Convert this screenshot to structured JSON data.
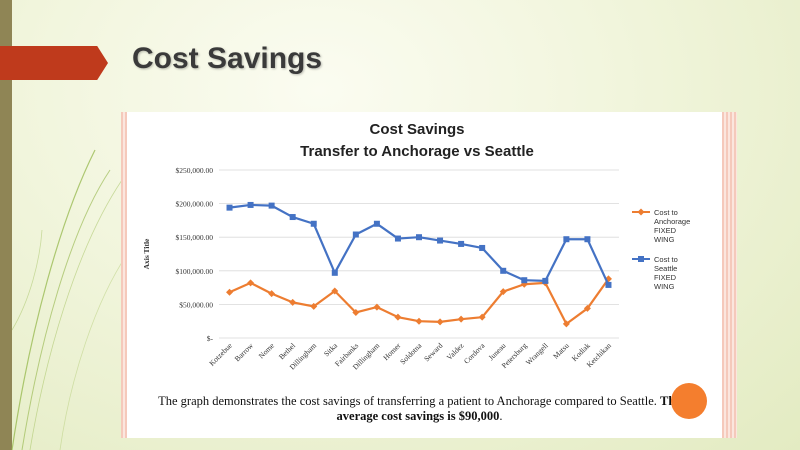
{
  "slide": {
    "title": "Cost Savings",
    "caption_plain_1": "The graph demonstrates the cost savings of transferring a patient to Anchorage compared to Seattle.",
    "caption_bold": "The average cost savings is $90,000",
    "caption_end": "."
  },
  "colors": {
    "accent_arrow": "#bf3a1c",
    "series_anchorage": "#ed7d31",
    "series_seattle": "#4472c4"
  },
  "chart_data": {
    "type": "line",
    "title": "Cost Savings",
    "subtitle": "Transfer to Anchorage vs Seattle",
    "xlabel": "",
    "ylabel": "Axis Title",
    "ylim": [
      0,
      250000
    ],
    "yticks": [
      "$-",
      "$50,000.00",
      "$100,000.00",
      "$150,000.00",
      "$200,000.00",
      "$250,000.00"
    ],
    "grid": true,
    "legend_position": "right",
    "categories": [
      "Kotzebue",
      "Barrow",
      "Nome",
      "Bethel",
      "Dillingham",
      "Sitka",
      "Fairbanks",
      "Dillingham",
      "Homer",
      "Soldotna",
      "Seward",
      "Valdez",
      "Cordova",
      "Juneau",
      "Petersburg",
      "Wrangell",
      "Matsu",
      "Kodiak",
      "Ketchikan"
    ],
    "series": [
      {
        "name": "Cost to Anchorage FIXED WING",
        "color": "#ed7d31",
        "marker": "diamond",
        "values": [
          68000,
          82000,
          66000,
          53000,
          47000,
          70000,
          38000,
          46000,
          31000,
          25000,
          24000,
          28000,
          31000,
          69000,
          80000,
          82000,
          21000,
          44000,
          88000
        ]
      },
      {
        "name": "Cost to Seattle FIXED WING",
        "color": "#4472c4",
        "marker": "square",
        "values": [
          194000,
          198000,
          197000,
          180000,
          170000,
          97000,
          154000,
          170000,
          148000,
          150000,
          145000,
          140000,
          134000,
          100000,
          86000,
          85000,
          147000,
          147000,
          79000
        ]
      }
    ]
  }
}
